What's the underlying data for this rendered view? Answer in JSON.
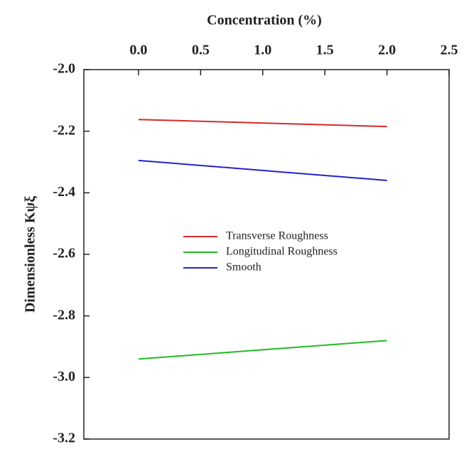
{
  "chart_data": {
    "type": "line",
    "x_label": "Concentration (%)",
    "y_label": "Dimensionless Kψξ",
    "x": [
      0,
      2.0
    ],
    "series": [
      {
        "name": "Transverse Roughness",
        "color": "#d42a2a",
        "values": [
          -2.162,
          -2.185
        ]
      },
      {
        "name": "Longitudinal Roughness",
        "color": "#22bb22",
        "values": [
          -2.94,
          -2.88
        ]
      },
      {
        "name": "Smooth",
        "color": "#2222cc",
        "values": [
          -2.295,
          -2.36
        ]
      }
    ],
    "xlim": [
      -0.44,
      2.5
    ],
    "xticks": [
      {
        "value": 0,
        "label": "0.0"
      },
      0.5,
      {
        "value": 1,
        "label": "1.0"
      },
      1.5,
      {
        "value": 2,
        "label": "2.0"
      },
      2.5
    ],
    "ylim": [
      -3.2,
      -2.0
    ],
    "yticks": [
      {
        "value": -2,
        "label": "-2.0"
      },
      -2.2,
      -2.4,
      -2.6,
      -2.8,
      {
        "value": -3,
        "label": "-3.0"
      },
      -3.2
    ],
    "legend": "center"
  }
}
